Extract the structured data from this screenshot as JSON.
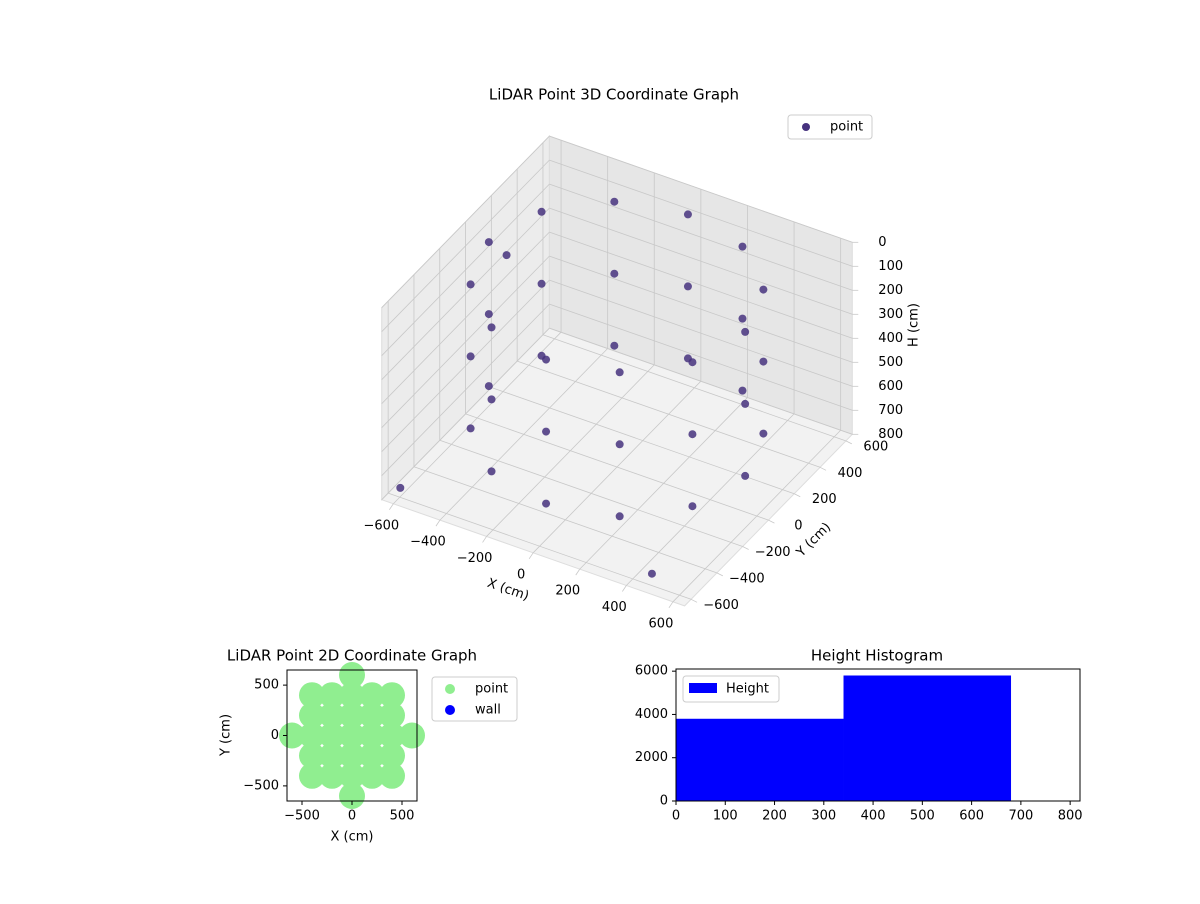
{
  "chart_data": [
    {
      "type": "scatter3d",
      "title": "LiDAR Point 3D Coordinate Graph",
      "xlabel": "X (cm)",
      "ylabel": "Y (cm)",
      "zlabel": "H (cm)",
      "xlim": [
        -650,
        650
      ],
      "ylim": [
        -650,
        650
      ],
      "zlim": [
        0,
        800
      ],
      "zinverted": true,
      "xticks": [
        {
          "value": -600,
          "label": "−600"
        },
        {
          "value": -400,
          "label": "−400"
        },
        {
          "value": -200,
          "label": "−200"
        },
        0,
        200,
        400,
        600
      ],
      "yticks": [
        {
          "value": -600,
          "label": "−600"
        },
        {
          "value": -400,
          "label": "−400"
        },
        {
          "value": -200,
          "label": "−200"
        },
        0,
        200,
        400,
        600
      ],
      "zticks": [
        0,
        100,
        200,
        300,
        400,
        500,
        600,
        700,
        800
      ],
      "legend": "upper right",
      "series": [
        {
          "name": "point",
          "color": "#46327e",
          "x": [
            550,
            476,
            275,
            0,
            -275,
            -476,
            -550,
            -476,
            -275,
            0,
            275,
            476,
            550,
            476,
            275,
            0,
            -275,
            -476,
            -550,
            -476,
            -275,
            0,
            275,
            476,
            550,
            476,
            275,
            0,
            -275,
            -476,
            -550,
            -476,
            -275,
            0,
            275,
            476,
            -620,
            460,
            -640
          ],
          "y": [
            0,
            275,
            476,
            550,
            476,
            275,
            0,
            -275,
            -476,
            -550,
            -476,
            -275,
            0,
            275,
            476,
            550,
            476,
            275,
            0,
            -275,
            -476,
            -550,
            -476,
            -275,
            0,
            275,
            476,
            550,
            476,
            275,
            0,
            -275,
            -476,
            -550,
            -476,
            -275,
            -560,
            -560,
            300
          ],
          "z": [
            50,
            50,
            50,
            50,
            50,
            50,
            50,
            50,
            50,
            50,
            50,
            50,
            350,
            350,
            350,
            350,
            350,
            350,
            350,
            350,
            350,
            350,
            350,
            350,
            650,
            650,
            650,
            650,
            650,
            650,
            650,
            650,
            650,
            650,
            650,
            650,
            790,
            780,
            300
          ]
        }
      ]
    },
    {
      "type": "scatter",
      "title": "LiDAR Point 2D Coordinate Graph",
      "xlabel": "X (cm)",
      "ylabel": "Y (cm)",
      "xlim": [
        -650,
        650
      ],
      "ylim": [
        -650,
        650
      ],
      "xticks": [
        {
          "value": -500,
          "label": "−500"
        },
        0,
        500
      ],
      "yticks": [
        {
          "value": -500,
          "label": "−500"
        },
        0,
        500
      ],
      "legend": "outside right",
      "series": [
        {
          "name": "point",
          "color": "#90ee90",
          "x": [
            -600,
            600,
            -400,
            -400,
            -400,
            -400,
            -400,
            400,
            400,
            400,
            400,
            400,
            -200,
            -200,
            -200,
            -200,
            -200,
            200,
            200,
            200,
            200,
            200,
            0,
            0,
            0,
            0,
            0,
            0,
            0
          ],
          "y": [
            0,
            0,
            -400,
            -200,
            0,
            200,
            400,
            -400,
            -200,
            0,
            200,
            400,
            -400,
            -200,
            0,
            200,
            400,
            -400,
            -200,
            0,
            200,
            400,
            -600,
            -400,
            -200,
            0,
            200,
            400,
            600
          ]
        },
        {
          "name": "wall",
          "color": "#0000ff",
          "x": [],
          "y": []
        }
      ]
    },
    {
      "type": "histogram",
      "title": "Height Histogram",
      "bins": [
        0,
        340,
        680
      ],
      "counts": [
        3800,
        5800
      ],
      "color": "#0000ff",
      "name": "Height",
      "xlim": [
        0,
        820
      ],
      "ylim": [
        0,
        6100
      ],
      "xticks": [
        0,
        100,
        200,
        300,
        400,
        500,
        600,
        700,
        800
      ],
      "yticks": [
        0,
        2000,
        4000,
        6000
      ],
      "legend": "upper left"
    }
  ]
}
